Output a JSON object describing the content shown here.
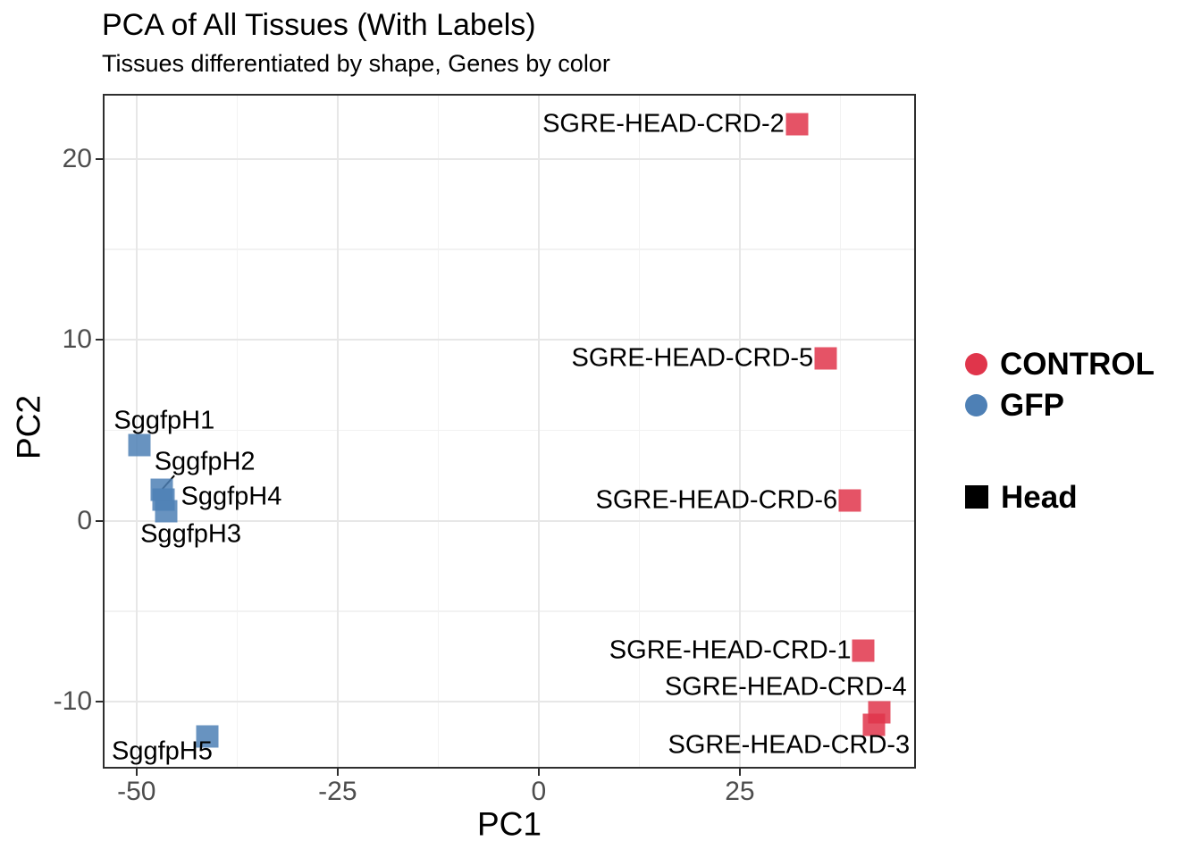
{
  "title": "PCA of All Tissues (With Labels)",
  "subtitle": "Tissues differentiated by shape, Genes by color",
  "colors": {
    "control_red": "#E0354B",
    "gfp_blue": "#4E80B5",
    "shape_black": "#000000",
    "grid_major": "#E7E7E7",
    "grid_minor": "#F2F2F2",
    "panel_border": "#2E2E2E",
    "tick_text": "#4D4D4D",
    "leader_line": "#000000"
  },
  "legend": {
    "color_items": [
      {
        "label": "CONTROL",
        "color": "#E0354B",
        "shape": "circle"
      },
      {
        "label": "GFP",
        "color": "#4E80B5",
        "shape": "circle"
      }
    ],
    "shape_items": [
      {
        "label": "Head",
        "color": "#000000",
        "shape": "square"
      }
    ]
  },
  "chart_data": {
    "type": "scatter",
    "title": "PCA of All Tissues (With Labels)",
    "subtitle": "Tissues differentiated by shape, Genes by color",
    "xlabel": "PC1",
    "ylabel": "PC2",
    "xlim": [
      -54.2,
      46.9
    ],
    "ylim": [
      -13.7,
      23.6
    ],
    "x_ticks": [
      -50,
      -25,
      0,
      25
    ],
    "y_ticks": [
      -10,
      0,
      10,
      20
    ],
    "x_minor_ticks": [
      -37.5,
      -12.5,
      12.5,
      37.5
    ],
    "y_minor_ticks": [
      -5,
      5,
      15
    ],
    "grid": "major+minor",
    "legend_position": "right",
    "marker": "square",
    "marker_size_px": 25,
    "series": [
      {
        "name": "CONTROL",
        "tissue": "Head",
        "color": "#E0354B",
        "points": [
          {
            "label": "SGRE-HEAD-CRD-2",
            "x": 32.1,
            "y": 21.9,
            "anchor": "end",
            "dx": -14,
            "dy": 0
          },
          {
            "label": "SGRE-HEAD-CRD-5",
            "x": 35.7,
            "y": 9.0,
            "anchor": "end",
            "dx": -14,
            "dy": 0
          },
          {
            "label": "SGRE-HEAD-CRD-6",
            "x": 38.7,
            "y": 1.1,
            "anchor": "end",
            "dx": -14,
            "dy": 0
          },
          {
            "label": "SGRE-HEAD-CRD-1",
            "x": 40.4,
            "y": -7.2,
            "anchor": "end",
            "dx": -14,
            "dy": 0
          },
          {
            "label": "SGRE-HEAD-CRD-4",
            "x": 42.3,
            "y": -10.6,
            "anchor": "end",
            "dx": 31,
            "dy": -28
          },
          {
            "label": "SGRE-HEAD-CRD-3",
            "x": 41.7,
            "y": -11.3,
            "anchor": "end",
            "dx": 40,
            "dy": 23
          }
        ]
      },
      {
        "name": "GFP",
        "tissue": "Head",
        "color": "#4E80B5",
        "points": [
          {
            "label": "SggfpH1",
            "x": -49.6,
            "y": 4.2,
            "anchor": "start",
            "dx": -29,
            "dy": -27
          },
          {
            "label": "SggfpH2",
            "x": -46.9,
            "y": 1.7,
            "anchor": "start",
            "dx": -8,
            "dy": -31,
            "leader": {
              "x1": -45.3,
              "y1": 2.5,
              "x2": -46.8,
              "y2": 1.75
            }
          },
          {
            "label": "SggfpH4",
            "x": -46.7,
            "y": 1.15,
            "anchor": "start",
            "dx": 20,
            "dy": -3
          },
          {
            "label": "SggfpH3",
            "x": -46.3,
            "y": 0.55,
            "anchor": "start",
            "dx": -29,
            "dy": 26
          },
          {
            "label": "SggfpH5",
            "x": -41.2,
            "y": -11.9,
            "anchor": "start",
            "dx": -107,
            "dy": 17
          }
        ]
      }
    ]
  }
}
